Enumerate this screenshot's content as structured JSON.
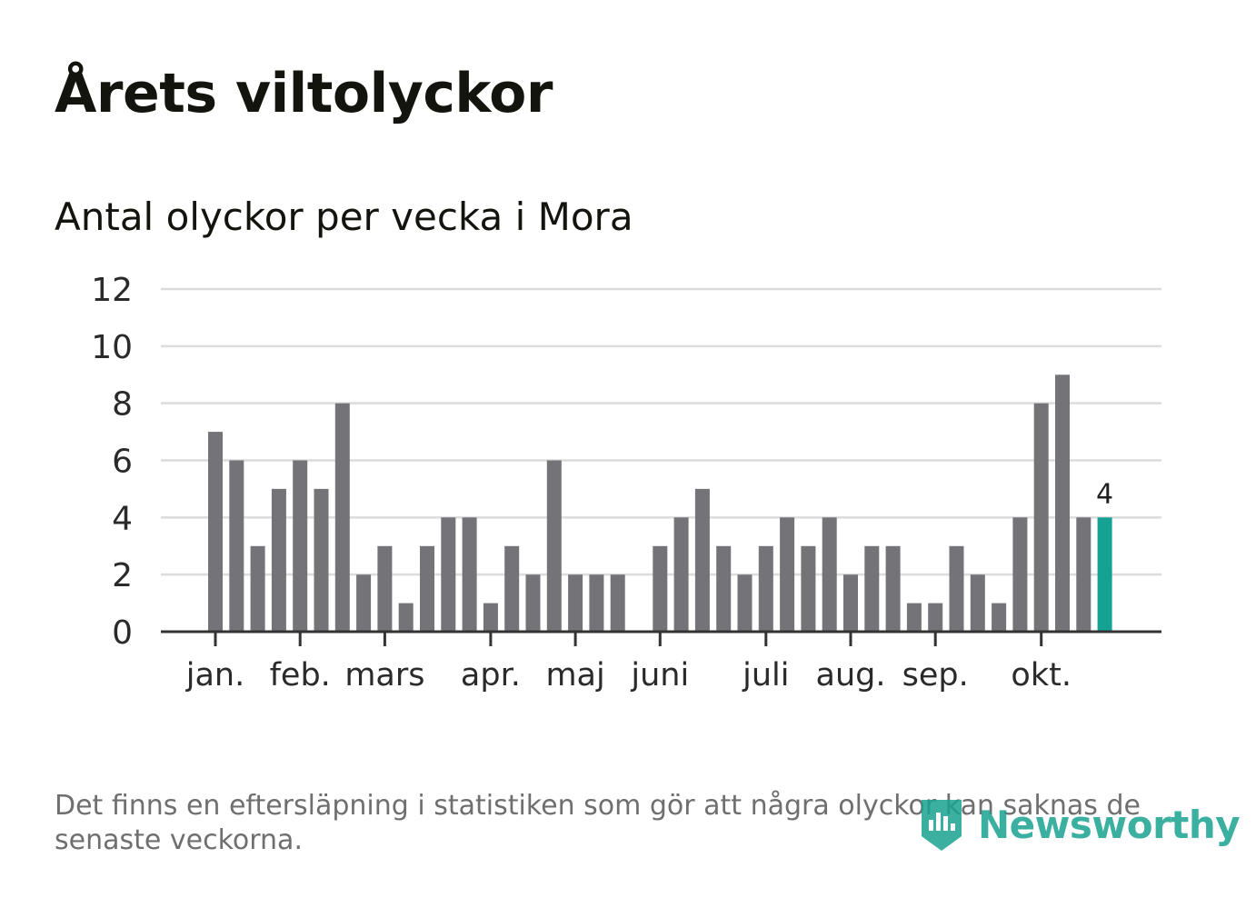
{
  "title": "Årets viltolyckor",
  "subtitle": "Antal olyckor per vecka i Mora",
  "footnote": "Det finns en eftersläpning i statistiken som gör att några olyckor kan saknas de senaste veckorna.",
  "logo": {
    "text": "Newsworthy",
    "icon": "bar-chart-badge-icon"
  },
  "colors": {
    "bar": "#737378",
    "highlight": "#15a193",
    "grid": "#dcdcdc",
    "axis": "#333333"
  },
  "chart_data": {
    "type": "bar",
    "title": "Årets viltolyckor",
    "subtitle": "Antal olyckor per vecka i Mora",
    "xlabel": "",
    "ylabel": "",
    "ylim": [
      0,
      12
    ],
    "yticks": [
      0,
      2,
      4,
      6,
      8,
      10,
      12
    ],
    "grid": true,
    "weeks": [
      1,
      2,
      3,
      4,
      5,
      6,
      7,
      8,
      9,
      10,
      11,
      12,
      13,
      14,
      15,
      16,
      17,
      18,
      19,
      20,
      21,
      22,
      23,
      24,
      25,
      26,
      27,
      28,
      29,
      30,
      31,
      32,
      33,
      34,
      35,
      36,
      37,
      38,
      39,
      40,
      41,
      42,
      43
    ],
    "values": [
      7,
      6,
      3,
      5,
      6,
      5,
      8,
      2,
      3,
      1,
      3,
      4,
      4,
      1,
      3,
      2,
      6,
      2,
      2,
      2,
      0,
      3,
      4,
      5,
      3,
      2,
      3,
      4,
      3,
      4,
      2,
      3,
      3,
      1,
      1,
      3,
      2,
      1,
      4,
      8,
      9,
      4,
      4
    ],
    "highlight_index": 42,
    "highlight_label": "4",
    "month_ticks": [
      {
        "label": "jan.",
        "week": 1
      },
      {
        "label": "feb.",
        "week": 5
      },
      {
        "label": "mars",
        "week": 9
      },
      {
        "label": "apr.",
        "week": 14
      },
      {
        "label": "maj",
        "week": 18
      },
      {
        "label": "juni",
        "week": 22
      },
      {
        "label": "juli",
        "week": 27
      },
      {
        "label": "aug.",
        "week": 31
      },
      {
        "label": "sep.",
        "week": 35
      },
      {
        "label": "okt.",
        "week": 40
      }
    ]
  }
}
